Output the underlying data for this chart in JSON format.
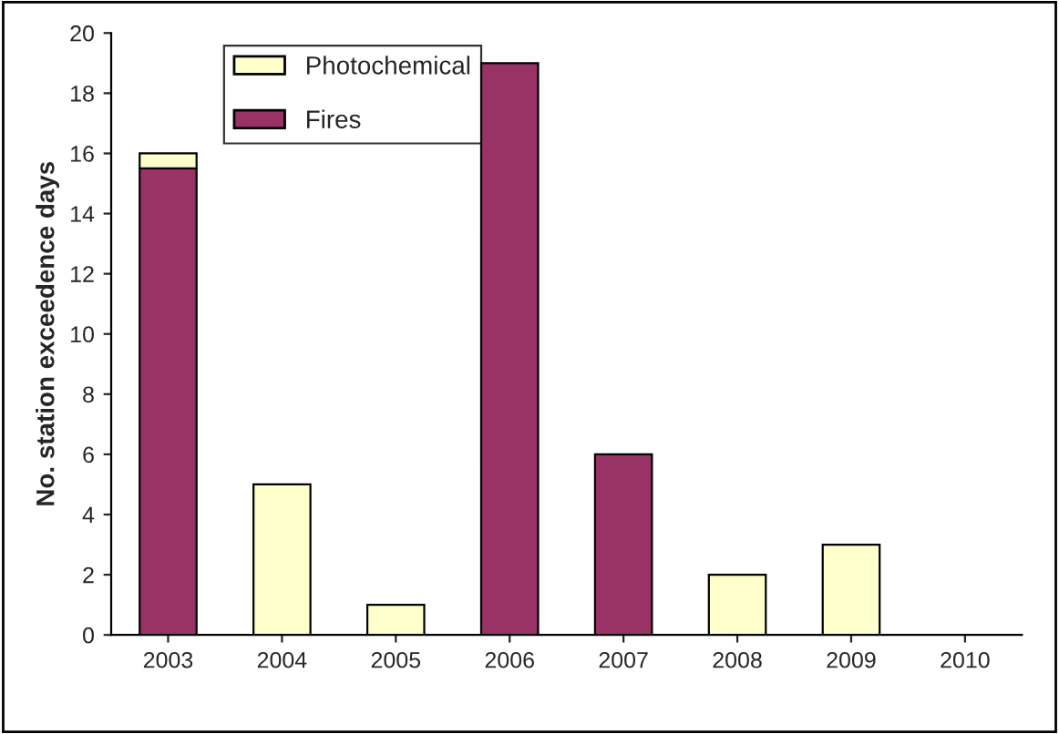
{
  "chart_data": {
    "type": "bar",
    "ylabel": "No. station exceedence days",
    "categories": [
      "2003",
      "2004",
      "2005",
      "2006",
      "2007",
      "2008",
      "2009",
      "2010"
    ],
    "stacked": true,
    "series": [
      {
        "name": "Fires",
        "color": "#993366",
        "values": [
          15.5,
          null,
          null,
          19,
          6,
          null,
          null,
          null
        ]
      },
      {
        "name": "Photochemical",
        "color": "#ffffcc",
        "values": [
          0.5,
          5,
          1,
          null,
          null,
          2,
          3,
          null
        ]
      }
    ],
    "ylim": [
      0,
      20
    ],
    "yticks": [
      0,
      2,
      4,
      6,
      8,
      10,
      12,
      14,
      16,
      18,
      20
    ],
    "grid": false,
    "legend": "top left"
  }
}
